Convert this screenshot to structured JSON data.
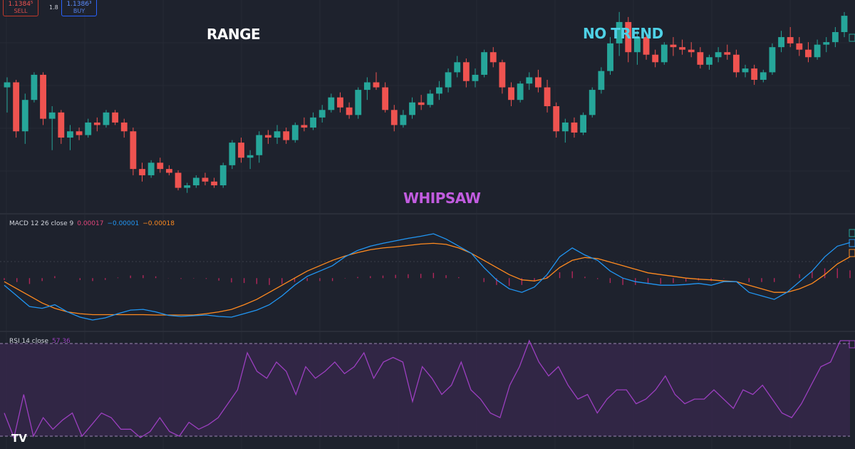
{
  "broker": {
    "sell_price": "1.1384⁵",
    "sell_label": "SELL",
    "spread": "1.8",
    "buy_price": "1.1386³",
    "buy_label": "BUY"
  },
  "annotations": {
    "range": "RANGE",
    "no_trend": "NO TREND",
    "whipsaw": "WHIPSAW"
  },
  "macd_legend": {
    "name": "MACD 12 26 close 9",
    "hist": "0.00017",
    "macd": "−0.00001",
    "signal": "−0.00018"
  },
  "rsi_legend": {
    "name": "RSI 14 close",
    "value": "57.36"
  },
  "logo": "TV",
  "colors": {
    "bg": "#1e222d",
    "up": "#26a69a",
    "down": "#ef5350",
    "macd_line": "#2196f3",
    "signal_line": "#ff8a1f",
    "hist": "#b2275a",
    "rsi_line": "#9c3fc0",
    "rsi_band": "#3a2a52"
  },
  "chart_data": [
    {
      "type": "candlestick",
      "title": "",
      "candles": [
        [
          1.138,
          1.1388,
          1.136,
          1.1384
        ],
        [
          1.1384,
          1.1386,
          1.134,
          1.1345
        ],
        [
          1.1345,
          1.1375,
          1.1335,
          1.137
        ],
        [
          1.137,
          1.1392,
          1.1368,
          1.139
        ],
        [
          1.139,
          1.1392,
          1.135,
          1.1355
        ],
        [
          1.1355,
          1.1365,
          1.133,
          1.136
        ],
        [
          1.136,
          1.1362,
          1.1335,
          1.134
        ],
        [
          1.134,
          1.135,
          1.133,
          1.1345
        ],
        [
          1.1345,
          1.1348,
          1.1338,
          1.1342
        ],
        [
          1.1342,
          1.1355,
          1.134,
          1.1352
        ],
        [
          1.1352,
          1.1356,
          1.1345,
          1.135
        ],
        [
          1.135,
          1.1362,
          1.1348,
          1.136
        ],
        [
          1.136,
          1.1362,
          1.135,
          1.1352
        ],
        [
          1.1352,
          1.1355,
          1.134,
          1.1345
        ],
        [
          1.1345,
          1.1348,
          1.131,
          1.1315
        ],
        [
          1.1315,
          1.132,
          1.1305,
          1.131
        ],
        [
          1.131,
          1.1322,
          1.1308,
          1.132
        ],
        [
          1.132,
          1.1324,
          1.1312,
          1.1315
        ],
        [
          1.1315,
          1.1318,
          1.131,
          1.1312
        ],
        [
          1.1312,
          1.1314,
          1.1298,
          1.13
        ],
        [
          1.13,
          1.1304,
          1.1296,
          1.1302
        ],
        [
          1.1302,
          1.131,
          1.13,
          1.1308
        ],
        [
          1.1308,
          1.1312,
          1.1302,
          1.1305
        ],
        [
          1.1305,
          1.1308,
          1.13,
          1.1302
        ],
        [
          1.1302,
          1.132,
          1.13,
          1.1318
        ],
        [
          1.1318,
          1.1338,
          1.1315,
          1.1336
        ],
        [
          1.1336,
          1.134,
          1.132,
          1.1324
        ],
        [
          1.1324,
          1.133,
          1.1315,
          1.1326
        ],
        [
          1.1326,
          1.1345,
          1.132,
          1.1342
        ],
        [
          1.1342,
          1.1346,
          1.1335,
          1.134
        ],
        [
          1.134,
          1.135,
          1.1335,
          1.1345
        ],
        [
          1.1345,
          1.1348,
          1.1335,
          1.1338
        ],
        [
          1.1338,
          1.1352,
          1.1336,
          1.135
        ],
        [
          1.135,
          1.1356,
          1.1345,
          1.1348
        ],
        [
          1.1348,
          1.136,
          1.1346,
          1.1356
        ],
        [
          1.1356,
          1.1366,
          1.1352,
          1.1362
        ],
        [
          1.1362,
          1.1375,
          1.136,
          1.1372
        ],
        [
          1.1372,
          1.1376,
          1.136,
          1.1364
        ],
        [
          1.1364,
          1.1368,
          1.1355,
          1.1358
        ],
        [
          1.1358,
          1.138,
          1.1355,
          1.1378
        ],
        [
          1.1378,
          1.1388,
          1.137,
          1.1384
        ],
        [
          1.1384,
          1.1392,
          1.1378,
          1.138
        ],
        [
          1.138,
          1.1384,
          1.136,
          1.1362
        ],
        [
          1.1362,
          1.1366,
          1.1345,
          1.135
        ],
        [
          1.135,
          1.1362,
          1.1348,
          1.1358
        ],
        [
          1.1358,
          1.1372,
          1.1355,
          1.1368
        ],
        [
          1.1368,
          1.1374,
          1.1362,
          1.1366
        ],
        [
          1.1366,
          1.1378,
          1.1364,
          1.1375
        ],
        [
          1.1375,
          1.1385,
          1.137,
          1.138
        ],
        [
          1.138,
          1.1395,
          1.1376,
          1.1392
        ],
        [
          1.1392,
          1.1405,
          1.1388,
          1.14
        ],
        [
          1.14,
          1.1403,
          1.138,
          1.1385
        ],
        [
          1.1385,
          1.1395,
          1.138,
          1.139
        ],
        [
          1.139,
          1.141,
          1.1388,
          1.1408
        ],
        [
          1.1408,
          1.1412,
          1.1396,
          1.14
        ],
        [
          1.14,
          1.1402,
          1.1375,
          1.138
        ],
        [
          1.138,
          1.1384,
          1.1365,
          1.137
        ],
        [
          1.137,
          1.1385,
          1.1368,
          1.1383
        ],
        [
          1.1383,
          1.1392,
          1.1378,
          1.1388
        ],
        [
          1.1388,
          1.1394,
          1.1376,
          1.138
        ],
        [
          1.138,
          1.1386,
          1.136,
          1.1365
        ],
        [
          1.1365,
          1.1368,
          1.134,
          1.1345
        ],
        [
          1.1345,
          1.1355,
          1.1336,
          1.1352
        ],
        [
          1.1352,
          1.1356,
          1.134,
          1.1344
        ],
        [
          1.1344,
          1.136,
          1.1342,
          1.1358
        ],
        [
          1.1358,
          1.138,
          1.1356,
          1.1378
        ],
        [
          1.1378,
          1.1396,
          1.1375,
          1.1393
        ],
        [
          1.1393,
          1.142,
          1.139,
          1.1415
        ],
        [
          1.1415,
          1.144,
          1.1405,
          1.1432
        ],
        [
          1.1432,
          1.1436,
          1.14,
          1.1408
        ],
        [
          1.1408,
          1.1425,
          1.1398,
          1.142
        ],
        [
          1.142,
          1.1424,
          1.1402,
          1.1406
        ],
        [
          1.1406,
          1.141,
          1.1396,
          1.14
        ],
        [
          1.14,
          1.1416,
          1.1398,
          1.1414
        ],
        [
          1.1414,
          1.142,
          1.1405,
          1.1412
        ],
        [
          1.1412,
          1.1418,
          1.1406,
          1.141
        ],
        [
          1.141,
          1.1416,
          1.1404,
          1.1408
        ],
        [
          1.1408,
          1.1412,
          1.1395,
          1.1398
        ],
        [
          1.1398,
          1.1406,
          1.1394,
          1.1404
        ],
        [
          1.1404,
          1.1412,
          1.14,
          1.1408
        ],
        [
          1.1408,
          1.1414,
          1.1402,
          1.1406
        ],
        [
          1.1406,
          1.141,
          1.1388,
          1.1392
        ],
        [
          1.1392,
          1.1398,
          1.1388,
          1.1395
        ],
        [
          1.1395,
          1.1398,
          1.1382,
          1.1386
        ],
        [
          1.1386,
          1.1394,
          1.1384,
          1.1392
        ],
        [
          1.1392,
          1.1415,
          1.139,
          1.1412
        ],
        [
          1.1412,
          1.1425,
          1.1408,
          1.142
        ],
        [
          1.142,
          1.1428,
          1.1412,
          1.1415
        ],
        [
          1.1415,
          1.142,
          1.1405,
          1.141
        ],
        [
          1.141,
          1.1416,
          1.14,
          1.1404
        ],
        [
          1.1404,
          1.1418,
          1.1402,
          1.1414
        ],
        [
          1.1414,
          1.142,
          1.1408,
          1.1416
        ],
        [
          1.1416,
          1.1428,
          1.1412,
          1.1424
        ],
        [
          1.1424,
          1.144,
          1.142,
          1.1437
        ]
      ],
      "ylim": [
        1.1285,
        1.1445
      ]
    },
    {
      "type": "line",
      "title": "MACD 12 26 close 9",
      "series": [
        {
          "name": "",
          "values": [
            -0.0002,
            -0.0005,
            -0.0008,
            -0.00085,
            -0.00075,
            -0.00095,
            -0.0011,
            -0.00118,
            -0.00112,
            -0.001,
            -0.0009,
            -0.00088,
            -0.00095,
            -0.00105,
            -0.00108,
            -0.00106,
            -0.00104,
            -0.00108,
            -0.0011,
            -0.001,
            -0.0009,
            -0.00075,
            -0.0005,
            -0.0002,
            5e-05,
            0.0002,
            0.00035,
            0.0006,
            0.00078,
            0.0009,
            0.00098,
            0.00105,
            0.00112,
            0.00118,
            0.00125,
            0.0011,
            0.0009,
            0.0007,
            0.0003,
            -5e-05,
            -0.0003,
            -0.0004,
            -0.00025,
            0.0001,
            0.0006,
            0.00085,
            0.00065,
            0.0005,
            0.0002,
            0.0,
            -0.0001,
            -0.00015,
            -0.0002,
            -0.0002,
            -0.00018,
            -0.00015,
            -0.0002,
            -0.0001,
            -0.0001,
            -0.0004,
            -0.0005,
            -0.0006,
            -0.0004,
            -0.0001,
            0.0002,
            0.0006,
            0.0009,
            0.001
          ]
        },
        {
          "name": "",
          "values": [
            -0.0001,
            -0.0003,
            -0.0005,
            -0.0007,
            -0.00085,
            -0.00095,
            -0.001,
            -0.00103,
            -0.00103,
            -0.00103,
            -0.00103,
            -0.00103,
            -0.00104,
            -0.00104,
            -0.00104,
            -0.00104,
            -0.001,
            -0.00095,
            -0.00088,
            -0.00075,
            -0.0006,
            -0.0004,
            -0.0002,
            0.0,
            0.0002,
            0.00035,
            0.0005,
            0.00062,
            0.00072,
            0.0008,
            0.00085,
            0.00088,
            0.00092,
            0.00096,
            0.00098,
            0.00095,
            0.00085,
            0.0007,
            0.0005,
            0.0003,
            0.0001,
            -5e-05,
            -8e-05,
            0.0,
            0.0003,
            0.0005,
            0.00058,
            0.00055,
            0.00045,
            0.00035,
            0.00025,
            0.00015,
            0.0001,
            5e-05,
            0.0,
            -3e-05,
            -5e-05,
            -8e-05,
            -0.0001,
            -0.0002,
            -0.0003,
            -0.0004,
            -0.0004,
            -0.0003,
            -0.00015,
            0.0001,
            0.0004,
            0.0006
          ]
        }
      ],
      "ylim": [
        -0.0013,
        0.00145
      ]
    },
    {
      "type": "line",
      "title": "RSI 14 close",
      "series": [
        {
          "name": "",
          "values": [
            40,
            28,
            48,
            30,
            38,
            33,
            37,
            40,
            30,
            35,
            40,
            38,
            33,
            33,
            28,
            32,
            38,
            32,
            30,
            36,
            33,
            35,
            38,
            44,
            50,
            66,
            58,
            55,
            62,
            58,
            48,
            60,
            55,
            58,
            62,
            57,
            60,
            66,
            55,
            62,
            64,
            62,
            45,
            60,
            55,
            48,
            52,
            62,
            50,
            46,
            40,
            38,
            52,
            60,
            72,
            62,
            56,
            60,
            52,
            46,
            48,
            40,
            46,
            50,
            50,
            44,
            46,
            50,
            56,
            48,
            44,
            46,
            46,
            50,
            46,
            42,
            50,
            48,
            52,
            46,
            40,
            38,
            44,
            52,
            60,
            62,
            78,
            80
          ]
        }
      ],
      "ylim": [
        20,
        90
      ]
    }
  ]
}
